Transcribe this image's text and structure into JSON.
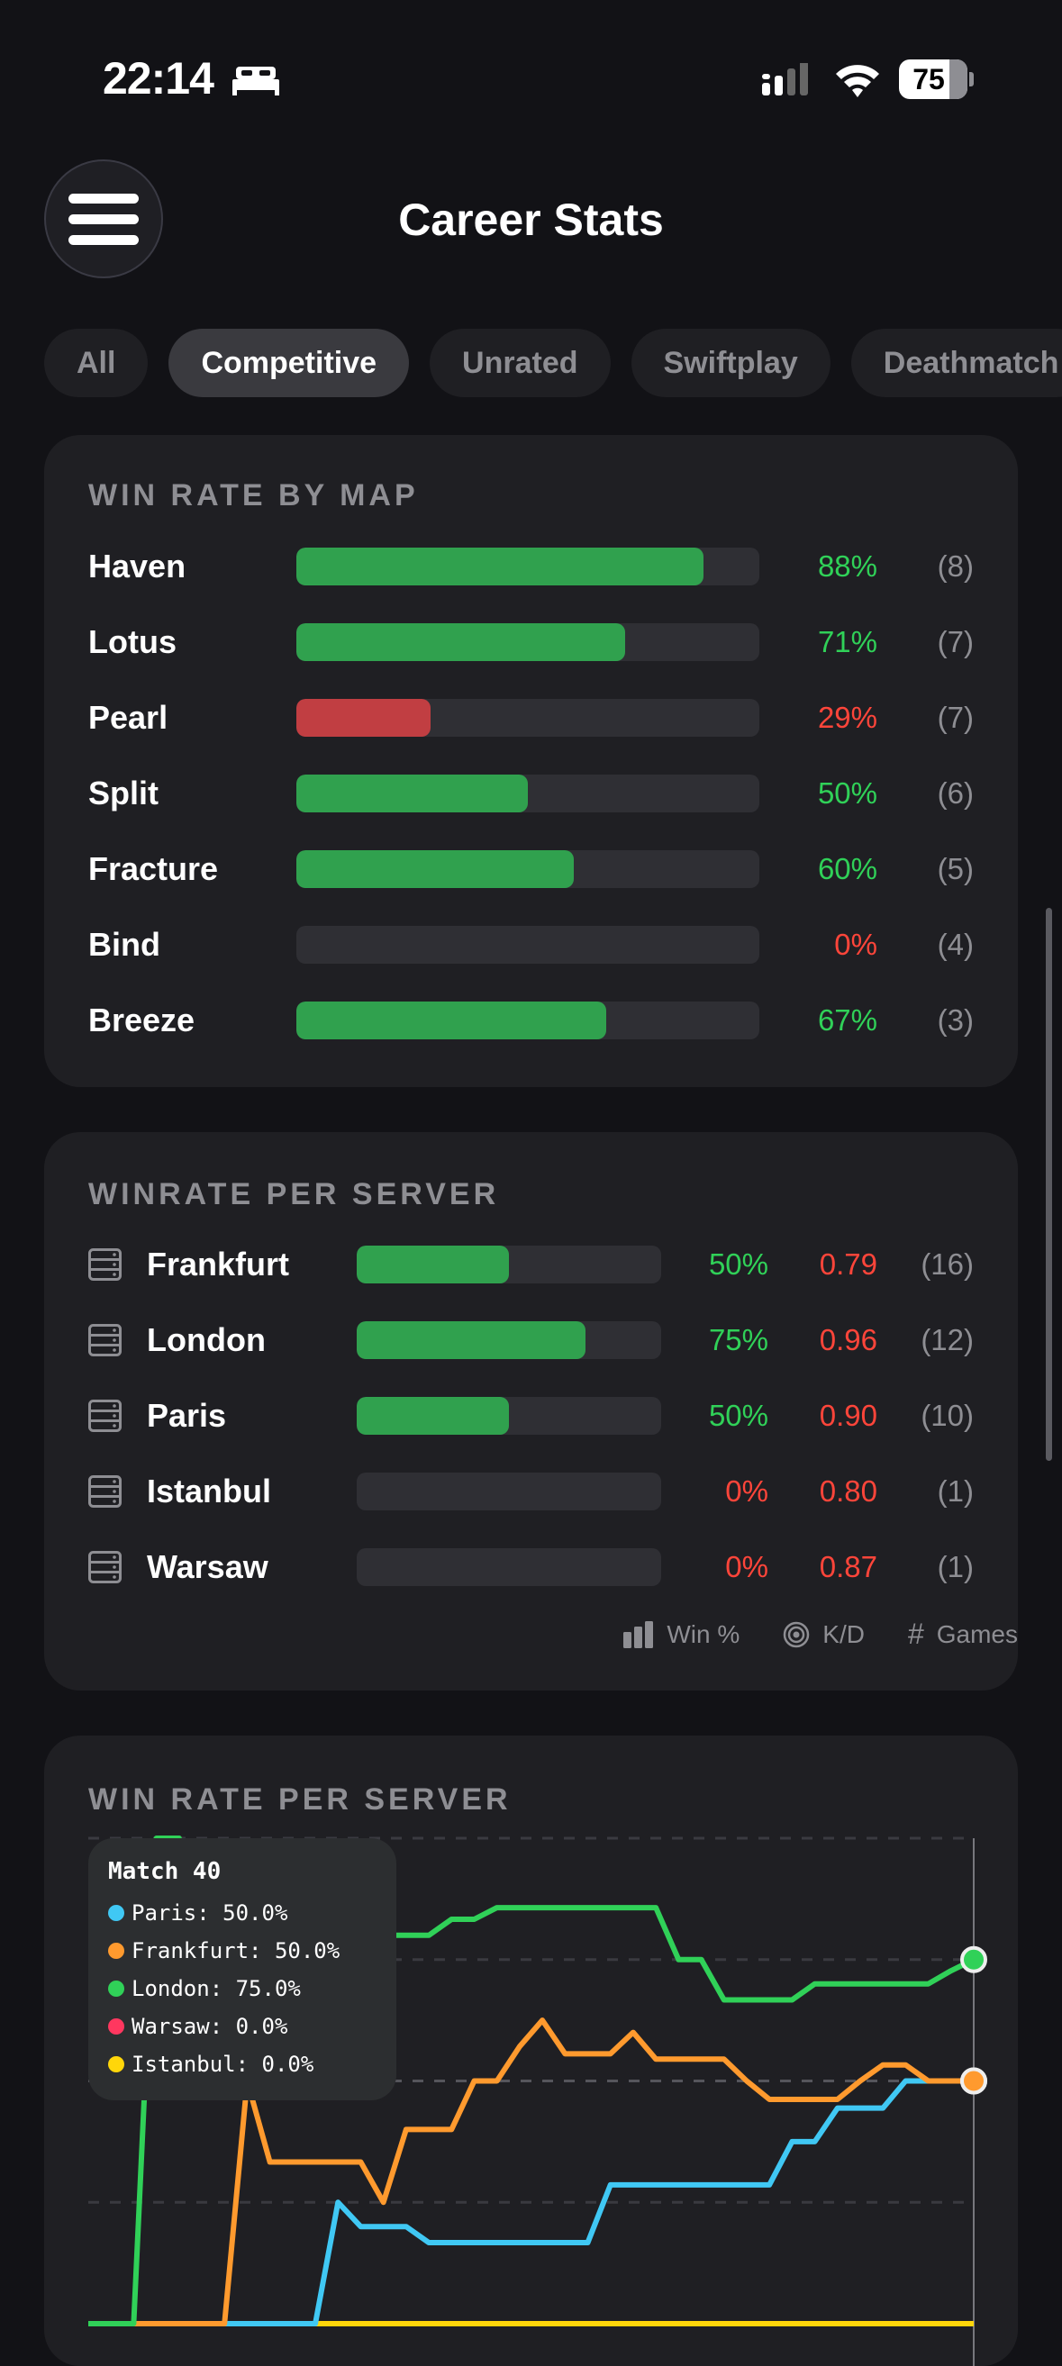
{
  "status_bar": {
    "time": "22:14",
    "battery": "75",
    "icons": [
      "bed-icon",
      "cellular-signal-icon",
      "wifi-icon",
      "battery-icon"
    ]
  },
  "header": {
    "title": "Career Stats",
    "menu_icon": "hamburger-menu-icon"
  },
  "tabs": [
    {
      "label": "All",
      "active": false
    },
    {
      "label": "Competitive",
      "active": true
    },
    {
      "label": "Unrated",
      "active": false
    },
    {
      "label": "Swiftplay",
      "active": false
    },
    {
      "label": "Deathmatch",
      "active": false
    }
  ],
  "colors": {
    "win": "#30d158",
    "loss": "#ff453a",
    "bar_win": "#30a14e",
    "bar_loss": "#c13e42",
    "card": "#1f1f23",
    "background": "#121216"
  },
  "map_card": {
    "title": "WIN RATE BY MAP",
    "rows": [
      {
        "name": "Haven",
        "win_pct": 88,
        "pct_label": "88%",
        "games": "(8)"
      },
      {
        "name": "Lotus",
        "win_pct": 71,
        "pct_label": "71%",
        "games": "(7)"
      },
      {
        "name": "Pearl",
        "win_pct": 29,
        "pct_label": "29%",
        "games": "(7)"
      },
      {
        "name": "Split",
        "win_pct": 50,
        "pct_label": "50%",
        "games": "(6)"
      },
      {
        "name": "Fracture",
        "win_pct": 60,
        "pct_label": "60%",
        "games": "(5)"
      },
      {
        "name": "Bind",
        "win_pct": 0,
        "pct_label": "0%",
        "games": "(4)"
      },
      {
        "name": "Breeze",
        "win_pct": 67,
        "pct_label": "67%",
        "games": "(3)"
      }
    ]
  },
  "server_card": {
    "title": "WINRATE PER SERVER",
    "rows": [
      {
        "name": "Frankfurt",
        "win_pct": 50,
        "pct_label": "50%",
        "kd": "0.79",
        "games": "(16)"
      },
      {
        "name": "London",
        "win_pct": 75,
        "pct_label": "75%",
        "kd": "0.96",
        "games": "(12)"
      },
      {
        "name": "Paris",
        "win_pct": 50,
        "pct_label": "50%",
        "kd": "0.90",
        "games": "(10)"
      },
      {
        "name": "Istanbul",
        "win_pct": 0,
        "pct_label": "0%",
        "kd": "0.80",
        "games": "(1)"
      },
      {
        "name": "Warsaw",
        "win_pct": 0,
        "pct_label": "0%",
        "kd": "0.87",
        "games": "(1)"
      }
    ],
    "legend": {
      "win": "Win %",
      "kd": "K/D",
      "games": "Games"
    }
  },
  "chart_card": {
    "title": "WIN RATE PER SERVER",
    "tooltip": {
      "title": "Match 40",
      "rows": [
        {
          "label": "Paris: 50.0%",
          "color": "#40c8f4"
        },
        {
          "label": "Frankfurt: 50.0%",
          "color": "#ff9a2e"
        },
        {
          "label": "London: 75.0%",
          "color": "#30d158"
        },
        {
          "label": "Warsaw: 0.0%",
          "color": "#ff375f"
        },
        {
          "label": "Istanbul: 0.0%",
          "color": "#ffd60a"
        }
      ]
    }
  },
  "chart_data": {
    "type": "line",
    "x": [
      1,
      2,
      3,
      4,
      5,
      6,
      7,
      8,
      9,
      10,
      11,
      12,
      13,
      14,
      15,
      16,
      17,
      18,
      19,
      20,
      21,
      22,
      23,
      24,
      25,
      26,
      27,
      28,
      29,
      30,
      31,
      32,
      33,
      34,
      35,
      36,
      37,
      38,
      39,
      40
    ],
    "ylim": [
      0,
      100
    ],
    "grid": true,
    "gridlines": [
      25,
      50,
      75,
      100
    ],
    "selected_x": 40,
    "series": [
      {
        "name": "Paris",
        "color": "#40c8f4",
        "values": [
          0,
          0,
          0,
          0,
          0,
          0,
          0,
          0,
          0,
          0,
          0,
          25,
          20,
          20,
          20,
          16.7,
          16.7,
          16.7,
          16.7,
          16.7,
          16.7,
          16.7,
          16.7,
          28.6,
          28.6,
          28.6,
          28.6,
          28.6,
          28.6,
          28.6,
          28.6,
          37.5,
          37.5,
          44.4,
          44.4,
          44.4,
          50,
          50,
          50,
          50
        ]
      },
      {
        "name": "Frankfurt",
        "color": "#ff9a2e",
        "values": [
          0,
          0,
          0,
          0,
          0,
          0,
          0,
          50,
          33.3,
          33.3,
          33.3,
          33.3,
          33.3,
          25,
          40,
          40,
          40,
          50,
          50,
          57.1,
          62.5,
          55.6,
          55.6,
          55.6,
          60,
          54.5,
          54.5,
          54.5,
          54.5,
          50,
          46.2,
          46.2,
          46.2,
          46.2,
          50,
          53.3,
          53.3,
          50,
          50,
          50
        ]
      },
      {
        "name": "London",
        "color": "#30d158",
        "values": [
          0,
          0,
          0,
          100,
          100,
          66.7,
          75,
          80,
          80,
          80,
          80,
          80,
          80,
          80,
          80,
          80,
          83.3,
          83.3,
          85.7,
          85.7,
          85.7,
          85.7,
          85.7,
          85.7,
          85.7,
          85.7,
          75,
          75,
          66.7,
          66.7,
          66.7,
          66.7,
          70,
          70,
          70,
          70,
          70,
          70,
          72.7,
          75
        ]
      },
      {
        "name": "Warsaw",
        "color": "#ff375f",
        "values": [
          0,
          0,
          0,
          0,
          0,
          0,
          0,
          0,
          0,
          0,
          0,
          0,
          0,
          0,
          0,
          0,
          0,
          0,
          0,
          0,
          0,
          0,
          0,
          0,
          0,
          0,
          0,
          0,
          0,
          0,
          0,
          0,
          0,
          0,
          0,
          0,
          0,
          0,
          0,
          0
        ]
      },
      {
        "name": "Istanbul",
        "color": "#ffd60a",
        "values": [
          0,
          0,
          0,
          0,
          0,
          0,
          0,
          0,
          0,
          0,
          0,
          0,
          0,
          0,
          0,
          0,
          0,
          0,
          0,
          0,
          0,
          0,
          0,
          0,
          0,
          0,
          0,
          0,
          0,
          0,
          0,
          0,
          0,
          0,
          0,
          0,
          0,
          0,
          0,
          0
        ]
      }
    ]
  }
}
